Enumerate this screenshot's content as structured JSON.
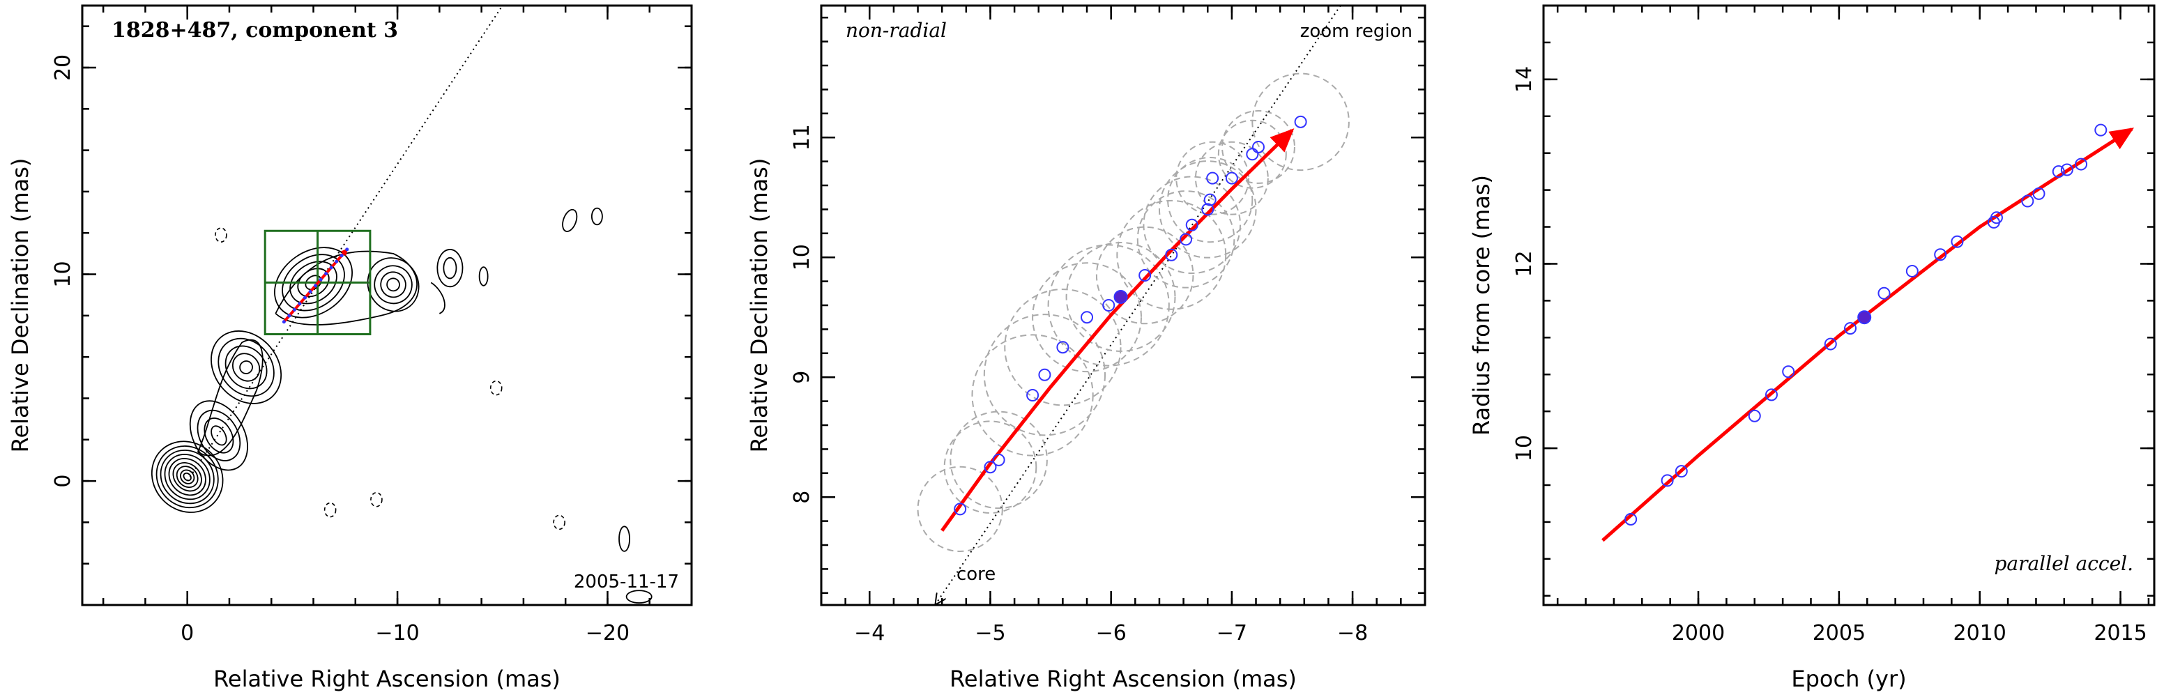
{
  "chart_data": [
    {
      "type": "scatter",
      "panel": "left",
      "title": "1828+487, component 3",
      "xlabel": "Relative Right Ascension (mas)",
      "ylabel": "Relative Declination (mas)",
      "xlim": [
        5,
        -24
      ],
      "ylim": [
        -6,
        23
      ],
      "x_ticks": [
        0,
        -10,
        -20
      ],
      "y_ticks": [
        0,
        10,
        20
      ],
      "date_label": "2005-11-17",
      "jet_axis": [
        [
          0,
          0
        ],
        [
          -15,
          23
        ]
      ],
      "zoom_box": {
        "x": [
          -3.7,
          -8.7
        ],
        "y": [
          7.1,
          12.1
        ]
      },
      "trajectory": {
        "start": [
          -4.6,
          7.7
        ],
        "end": [
          -7.6,
          11.2
        ]
      },
      "contour_color": "#000000",
      "box_color": "#1f6f1f",
      "track_color": "#ff0000"
    },
    {
      "type": "scatter",
      "panel": "middle",
      "label": "non-radial",
      "zoom_label": "zoom region",
      "core_label": "core",
      "xlabel": "Relative Right Ascension (mas)",
      "ylabel": "Relative Declination (mas)",
      "xlim": [
        -3.6,
        -8.6
      ],
      "ylim": [
        7.1,
        12.1
      ],
      "x_ticks": [
        -4,
        -5,
        -6,
        -7,
        -8
      ],
      "y_ticks": [
        8,
        9,
        10,
        11
      ],
      "points": [
        {
          "x": -4.75,
          "y": 7.9
        },
        {
          "x": -5.0,
          "y": 8.25
        },
        {
          "x": -5.07,
          "y": 8.31
        },
        {
          "x": -5.35,
          "y": 8.85
        },
        {
          "x": -5.45,
          "y": 9.02
        },
        {
          "x": -5.6,
          "y": 9.25
        },
        {
          "x": -5.8,
          "y": 9.5
        },
        {
          "x": -5.98,
          "y": 9.6
        },
        {
          "x": -6.08,
          "y": 9.67
        },
        {
          "x": -6.28,
          "y": 9.85
        },
        {
          "x": -6.5,
          "y": 10.02
        },
        {
          "x": -6.62,
          "y": 10.15
        },
        {
          "x": -6.67,
          "y": 10.27
        },
        {
          "x": -6.8,
          "y": 10.4
        },
        {
          "x": -6.82,
          "y": 10.48
        },
        {
          "x": -6.84,
          "y": 10.66
        },
        {
          "x": -7.0,
          "y": 10.66
        },
        {
          "x": -7.17,
          "y": 10.86
        },
        {
          "x": -7.22,
          "y": 10.92
        },
        {
          "x": -7.57,
          "y": 11.13
        }
      ],
      "highlight_point": {
        "x": -6.08,
        "y": 9.67
      },
      "circles": [
        {
          "x": -4.75,
          "y": 7.9,
          "r": 0.35
        },
        {
          "x": -5.0,
          "y": 8.25,
          "r": 0.38
        },
        {
          "x": -5.07,
          "y": 8.31,
          "r": 0.4
        },
        {
          "x": -5.35,
          "y": 8.85,
          "r": 0.5
        },
        {
          "x": -5.45,
          "y": 9.02,
          "r": 0.5
        },
        {
          "x": -5.6,
          "y": 9.25,
          "r": 0.48
        },
        {
          "x": -5.8,
          "y": 9.5,
          "r": 0.45
        },
        {
          "x": -5.98,
          "y": 9.6,
          "r": 0.5
        },
        {
          "x": -6.08,
          "y": 9.67,
          "r": 0.45
        },
        {
          "x": -6.28,
          "y": 9.85,
          "r": 0.4
        },
        {
          "x": -6.5,
          "y": 10.02,
          "r": 0.45
        },
        {
          "x": -6.62,
          "y": 10.15,
          "r": 0.4
        },
        {
          "x": -6.67,
          "y": 10.27,
          "r": 0.4
        },
        {
          "x": -6.8,
          "y": 10.4,
          "r": 0.4
        },
        {
          "x": -6.82,
          "y": 10.48,
          "r": 0.35
        },
        {
          "x": -6.84,
          "y": 10.66,
          "r": 0.3
        },
        {
          "x": -7.0,
          "y": 10.66,
          "r": 0.3
        },
        {
          "x": -7.17,
          "y": 10.86,
          "r": 0.28
        },
        {
          "x": -7.22,
          "y": 10.92,
          "r": 0.3
        },
        {
          "x": -7.57,
          "y": 11.13,
          "r": 0.4
        }
      ],
      "trajectory": [
        [
          -4.6,
          7.72
        ],
        [
          -5.0,
          8.28
        ],
        [
          -5.5,
          8.92
        ],
        [
          -6.0,
          9.52
        ],
        [
          -6.5,
          10.06
        ],
        [
          -7.0,
          10.57
        ],
        [
          -7.5,
          11.06
        ]
      ],
      "jet_axis": [
        [
          -4.55,
          7.1
        ],
        [
          -7.9,
          12.1
        ]
      ],
      "point_color": "#3333ff",
      "circle_color": "#aaaaaa",
      "track_color": "#ff0000"
    },
    {
      "type": "line",
      "panel": "right",
      "label": "parallel accel.",
      "xlabel": "Epoch (yr)",
      "ylabel": "Radius from core (mas)",
      "xlim": [
        1994.5,
        2016.2
      ],
      "ylim": [
        8.3,
        14.8
      ],
      "x_ticks": [
        2000,
        2005,
        2010,
        2015
      ],
      "y_ticks": [
        10,
        12,
        14
      ],
      "points": [
        {
          "x": 1997.6,
          "y": 9.23
        },
        {
          "x": 1998.9,
          "y": 9.65
        },
        {
          "x": 1999.4,
          "y": 9.75
        },
        {
          "x": 2002.0,
          "y": 10.35
        },
        {
          "x": 2002.6,
          "y": 10.58
        },
        {
          "x": 2003.2,
          "y": 10.83
        },
        {
          "x": 2004.7,
          "y": 11.13
        },
        {
          "x": 2005.4,
          "y": 11.3
        },
        {
          "x": 2005.9,
          "y": 11.42
        },
        {
          "x": 2006.6,
          "y": 11.68
        },
        {
          "x": 2007.6,
          "y": 11.92
        },
        {
          "x": 2008.6,
          "y": 12.1
        },
        {
          "x": 2009.2,
          "y": 12.24
        },
        {
          "x": 2010.5,
          "y": 12.45
        },
        {
          "x": 2010.6,
          "y": 12.5
        },
        {
          "x": 2011.7,
          "y": 12.68
        },
        {
          "x": 2012.1,
          "y": 12.76
        },
        {
          "x": 2012.8,
          "y": 13.0
        },
        {
          "x": 2013.1,
          "y": 13.02
        },
        {
          "x": 2013.6,
          "y": 13.08
        },
        {
          "x": 2014.3,
          "y": 13.45
        }
      ],
      "highlight_point": {
        "x": 2005.9,
        "y": 11.42
      },
      "fit": [
        [
          1996.6,
          9.0
        ],
        [
          2000,
          9.92
        ],
        [
          2005,
          11.22
        ],
        [
          2010,
          12.4
        ],
        [
          2015.4,
          13.46
        ]
      ],
      "point_color": "#3333ff",
      "track_color": "#ff0000"
    }
  ]
}
